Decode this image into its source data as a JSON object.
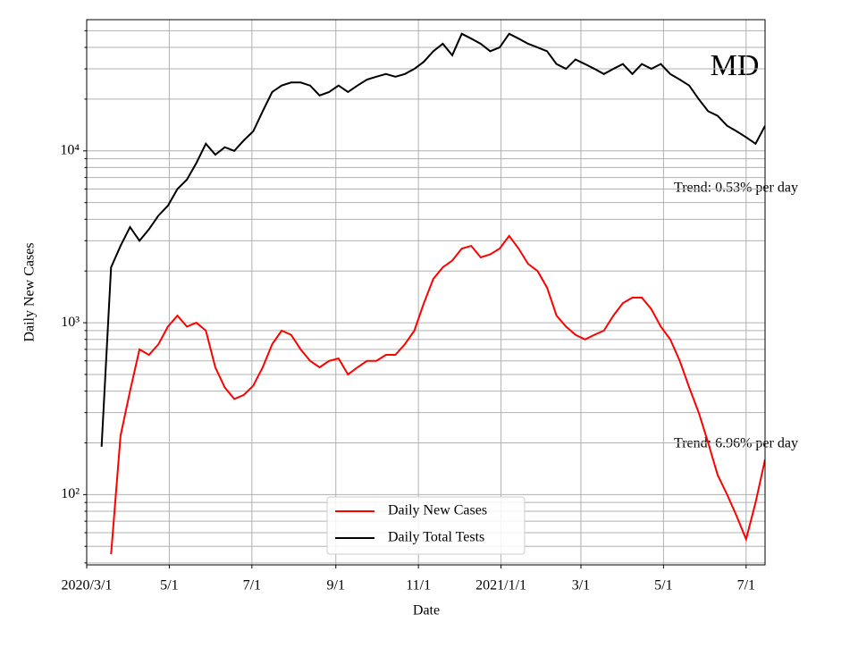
{
  "chart_data": {
    "type": "line",
    "title": "MD",
    "xlabel": "Date",
    "ylabel": "Daily New Cases",
    "log_scale": true,
    "grid": true,
    "legend_position": "lower center",
    "annotations": [
      "Trend: 0.53% per day",
      "Trend: 6.96% per day"
    ],
    "x": [
      "2020-03-05",
      "2020-03-12",
      "2020-03-19",
      "2020-03-26",
      "2020-04-02",
      "2020-04-09",
      "2020-04-16",
      "2020-04-23",
      "2020-04-30",
      "2020-05-07",
      "2020-05-14",
      "2020-05-21",
      "2020-05-28",
      "2020-06-04",
      "2020-06-11",
      "2020-06-18",
      "2020-06-25",
      "2020-07-02",
      "2020-07-09",
      "2020-07-16",
      "2020-07-23",
      "2020-07-30",
      "2020-08-06",
      "2020-08-13",
      "2020-08-20",
      "2020-08-27",
      "2020-09-03",
      "2020-09-10",
      "2020-09-17",
      "2020-09-24",
      "2020-10-01",
      "2020-10-08",
      "2020-10-15",
      "2020-10-22",
      "2020-10-29",
      "2020-11-05",
      "2020-11-12",
      "2020-11-19",
      "2020-11-26",
      "2020-12-03",
      "2020-12-10",
      "2020-12-17",
      "2020-12-24",
      "2020-12-31",
      "2021-01-07",
      "2021-01-14",
      "2021-01-21",
      "2021-01-28",
      "2021-02-04",
      "2021-02-11",
      "2021-02-18",
      "2021-02-25",
      "2021-03-04",
      "2021-03-11",
      "2021-03-18",
      "2021-03-25",
      "2021-04-01",
      "2021-04-08",
      "2021-04-15",
      "2021-04-22",
      "2021-04-29",
      "2021-05-06",
      "2021-05-13",
      "2021-05-20",
      "2021-05-27",
      "2021-06-03",
      "2021-06-10",
      "2021-06-17",
      "2021-06-24",
      "2021-07-01",
      "2021-07-08",
      "2021-07-15"
    ],
    "series": [
      {
        "name": "Daily New Cases",
        "color": "#ff0000",
        "values": [
          null,
          null,
          45,
          220,
          400,
          700,
          650,
          750,
          950,
          1100,
          950,
          1000,
          900,
          550,
          420,
          360,
          380,
          430,
          550,
          750,
          900,
          850,
          700,
          600,
          550,
          600,
          620,
          500,
          550,
          600,
          600,
          650,
          650,
          750,
          900,
          1300,
          1800,
          2100,
          2300,
          2700,
          2800,
          2400,
          2500,
          2700,
          3200,
          2700,
          2200,
          2000,
          1600,
          1100,
          950,
          850,
          800,
          850,
          900,
          1100,
          1300,
          1400,
          1400,
          1200,
          950,
          800,
          600,
          420,
          300,
          200,
          130,
          100,
          75,
          55,
          90,
          160
        ]
      },
      {
        "name": "Daily Total Tests",
        "color": "#000000",
        "values": [
          null,
          190,
          2100,
          2800,
          3600,
          3000,
          3500,
          4200,
          4800,
          6000,
          6800,
          8500,
          11000,
          9500,
          10500,
          10000,
          11500,
          13000,
          17000,
          22000,
          24000,
          25000,
          25000,
          24000,
          21000,
          22000,
          24000,
          22000,
          24000,
          26000,
          27000,
          28000,
          27000,
          28000,
          30000,
          33000,
          38000,
          42000,
          36000,
          48000,
          45000,
          42000,
          38000,
          40000,
          48000,
          45000,
          42000,
          40000,
          38000,
          32000,
          30000,
          34000,
          32000,
          30000,
          28000,
          30000,
          32000,
          28000,
          32000,
          30000,
          32000,
          28000,
          26000,
          24000,
          20000,
          17000,
          16000,
          14000,
          13000,
          12000,
          11000,
          14000
        ]
      }
    ],
    "xlim": [
      "2020-03-01",
      "2021-07-15"
    ],
    "xticks": [
      {
        "value": "2020-03-01",
        "label": "2020/3/1"
      },
      {
        "value": "2020-05-01",
        "label": "5/1"
      },
      {
        "value": "2020-07-01",
        "label": "7/1"
      },
      {
        "value": "2020-09-01",
        "label": "9/1"
      },
      {
        "value": "2020-11-01",
        "label": "11/1"
      },
      {
        "value": "2021-01-01",
        "label": "2021/1/1"
      },
      {
        "value": "2021-03-01",
        "label": "3/1"
      },
      {
        "value": "2021-05-01",
        "label": "5/1"
      },
      {
        "value": "2021-07-01",
        "label": "7/1"
      }
    ],
    "ylim": [
      39,
      58000
    ],
    "yticks": [
      {
        "value": 100,
        "label": "10²"
      },
      {
        "value": 1000,
        "label": "10³"
      },
      {
        "value": 10000,
        "label": "10⁴"
      }
    ],
    "minor_yticks": [
      40,
      50,
      60,
      70,
      80,
      90,
      200,
      300,
      400,
      500,
      600,
      700,
      800,
      900,
      2000,
      3000,
      4000,
      5000,
      6000,
      7000,
      8000,
      9000,
      20000,
      30000,
      40000,
      50000
    ]
  }
}
